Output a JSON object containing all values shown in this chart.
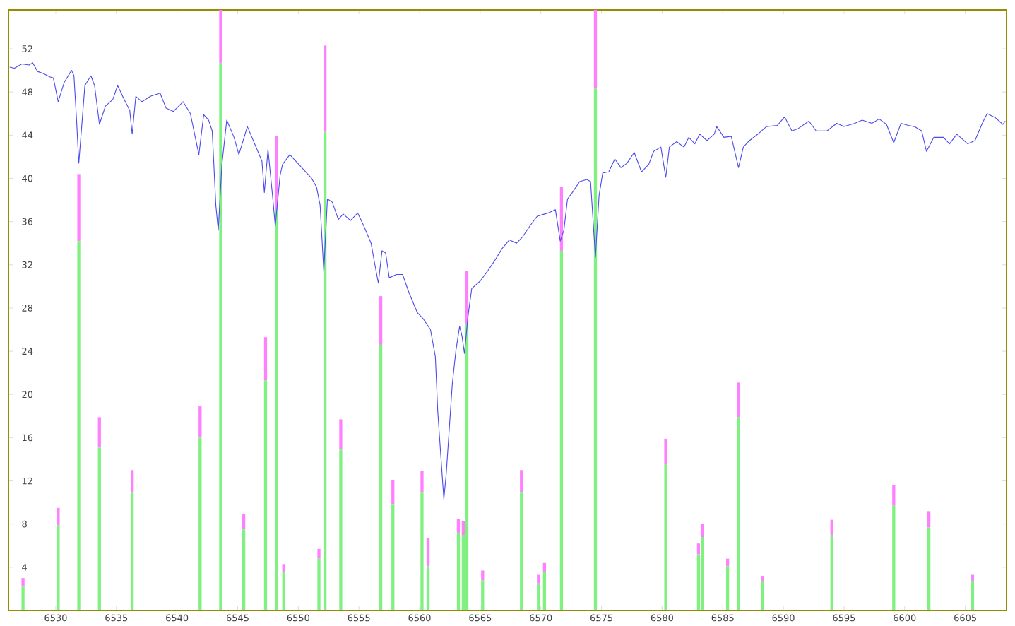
{
  "chart_data": {
    "type": "bar",
    "stacked": true,
    "xlim": [
      6526.1,
      6608.4
    ],
    "ylim": [
      0,
      55.6
    ],
    "xticks": [
      6530,
      6535,
      6540,
      6545,
      6550,
      6555,
      6560,
      6565,
      6570,
      6575,
      6580,
      6585,
      6590,
      6595,
      6600,
      6605
    ],
    "yticks": [
      4,
      8,
      12,
      16,
      20,
      24,
      28,
      32,
      36,
      40,
      44,
      48,
      52
    ],
    "series": [
      {
        "type": "bar",
        "color": "#80f080",
        "x": [
          6527.3,
          6530.2,
          6531.9,
          6533.6,
          6536.3,
          6541.9,
          6543.6,
          6545.5,
          6547.3,
          6548.2,
          6548.8,
          6551.7,
          6552.2,
          6553.5,
          6556.8,
          6557.8,
          6560.2,
          6560.7,
          6563.2,
          6563.6,
          6563.9,
          6565.2,
          6568.4,
          6569.8,
          6570.3,
          6571.7,
          6574.5,
          6580.3,
          6583.0,
          6583.3,
          6585.4,
          6586.3,
          6588.3,
          6594.0,
          6599.1,
          6602.0,
          6605.6
        ],
        "values": [
          2.2,
          7.9,
          34.2,
          15.1,
          10.9,
          16.0,
          50.7,
          7.5,
          21.3,
          37.1,
          3.6,
          4.8,
          44.3,
          14.9,
          24.6,
          9.8,
          10.9,
          4.1,
          7.2,
          7.0,
          26.5,
          2.8,
          10.9,
          2.5,
          3.6,
          33.3,
          48.3,
          13.5,
          5.2,
          6.8,
          4.1,
          17.9,
          2.7,
          7.0,
          9.7,
          7.7,
          2.7
        ]
      },
      {
        "type": "bar",
        "color": "#ff80ff",
        "x": [
          6527.3,
          6530.2,
          6531.9,
          6533.6,
          6536.3,
          6541.9,
          6543.6,
          6545.5,
          6547.3,
          6548.2,
          6548.8,
          6551.7,
          6552.2,
          6553.5,
          6556.8,
          6557.8,
          6560.2,
          6560.7,
          6563.2,
          6563.6,
          6563.9,
          6565.2,
          6568.4,
          6569.8,
          6570.3,
          6571.7,
          6574.5,
          6580.3,
          6583.0,
          6583.3,
          6585.4,
          6586.3,
          6588.3,
          6594.0,
          6599.1,
          6602.0,
          6605.6
        ],
        "values": [
          0.8,
          1.6,
          6.2,
          2.8,
          2.1,
          2.9,
          4.9,
          1.4,
          4.0,
          6.8,
          0.7,
          0.9,
          8.0,
          2.8,
          4.5,
          2.3,
          2.0,
          2.6,
          1.3,
          1.3,
          4.9,
          0.9,
          2.1,
          0.8,
          0.8,
          5.9,
          7.3,
          2.4,
          1.0,
          1.2,
          0.7,
          3.2,
          0.5,
          1.4,
          1.9,
          1.5,
          0.6
        ]
      },
      {
        "type": "line",
        "color": "#4a4af0",
        "x": [
          6526.2,
          6526.6,
          6527.2,
          6527.8,
          6528.1,
          6528.5,
          6529.0,
          6529.5,
          6529.8,
          6530.2,
          6530.7,
          6531.3,
          6531.5,
          6531.7,
          6531.9,
          6532.2,
          6532.4,
          6532.9,
          6533.2,
          6533.6,
          6534.1,
          6534.7,
          6535.1,
          6535.6,
          6536.1,
          6536.3,
          6536.6,
          6537.1,
          6537.8,
          6538.6,
          6539.1,
          6539.7,
          6540.5,
          6541.1,
          6541.8,
          6542.2,
          6542.6,
          6542.9,
          6543.2,
          6543.4,
          6543.7,
          6544.1,
          6544.7,
          6545.1,
          6545.8,
          6546.4,
          6547.0,
          6547.2,
          6547.5,
          6547.9,
          6548.1,
          6548.5,
          6548.7,
          6549.3,
          6550.2,
          6551.1,
          6551.5,
          6551.8,
          6552.1,
          6552.4,
          6552.8,
          6553.3,
          6553.7,
          6554.3,
          6554.9,
          6555.4,
          6556.0,
          6556.3,
          6556.6,
          6556.9,
          6557.2,
          6557.5,
          6558.1,
          6558.6,
          6559.1,
          6559.8,
          6560.3,
          6560.9,
          6561.3,
          6561.5,
          6562.0,
          6562.2,
          6562.7,
          6563.0,
          6563.3,
          6563.5,
          6563.7,
          6564.0,
          6564.3,
          6565.0,
          6565.6,
          6566.2,
          6566.8,
          6567.4,
          6568.0,
          6568.5,
          6569.1,
          6569.7,
          6570.6,
          6571.2,
          6571.6,
          6571.9,
          6572.2,
          6572.6,
          6573.2,
          6573.8,
          6574.1,
          6574.5,
          6574.8,
          6575.1,
          6575.6,
          6576.1,
          6576.6,
          6577.1,
          6577.7,
          6578.3,
          6578.9,
          6579.3,
          6579.9,
          6580.3,
          6580.6,
          6581.2,
          6581.8,
          6582.2,
          6582.7,
          6583.1,
          6583.7,
          6584.3,
          6584.5,
          6585.1,
          6585.7,
          6586.3,
          6586.7,
          6587.2,
          6587.9,
          6588.6,
          6589.5,
          6590.1,
          6590.7,
          6591.2,
          6592.1,
          6592.7,
          6593.6,
          6594.4,
          6595.0,
          6595.9,
          6596.5,
          6597.3,
          6597.9,
          6598.5,
          6599.1,
          6599.7,
          6600.3,
          6600.8,
          6601.4,
          6601.8,
          6602.4,
          6603.2,
          6603.7,
          6604.3,
          6605.2,
          6605.8,
          6606.4,
          6606.8,
          6607.5,
          6608.1,
          6608.3
        ],
        "values": [
          50.3,
          50.2,
          50.6,
          50.5,
          50.7,
          49.9,
          49.7,
          49.4,
          49.3,
          47.1,
          48.9,
          50.0,
          49.5,
          45.7,
          41.4,
          45.7,
          48.6,
          49.5,
          48.6,
          45.0,
          46.7,
          47.3,
          48.6,
          47.4,
          46.3,
          44.1,
          47.6,
          47.1,
          47.6,
          47.9,
          46.5,
          46.2,
          47.1,
          46.0,
          42.2,
          45.9,
          45.4,
          44.4,
          37.5,
          35.2,
          41.3,
          45.4,
          43.8,
          42.2,
          44.8,
          43.2,
          41.6,
          38.7,
          42.7,
          38.1,
          35.6,
          40.3,
          41.3,
          42.2,
          41.1,
          40.0,
          39.2,
          37.5,
          31.4,
          38.1,
          37.8,
          36.2,
          36.7,
          36.1,
          36.8,
          35.6,
          34.0,
          32.1,
          30.3,
          33.3,
          33.1,
          30.8,
          31.1,
          31.1,
          29.5,
          27.6,
          27.0,
          26.0,
          23.5,
          18.4,
          10.3,
          12.7,
          21.0,
          24.1,
          26.3,
          25.4,
          23.8,
          27.3,
          29.8,
          30.5,
          31.4,
          32.4,
          33.5,
          34.3,
          34.0,
          34.6,
          35.6,
          36.5,
          36.8,
          37.1,
          34.2,
          35.2,
          38.1,
          38.7,
          39.7,
          39.9,
          39.7,
          32.7,
          38.4,
          40.5,
          40.6,
          41.8,
          41.0,
          41.4,
          42.4,
          40.6,
          41.3,
          42.5,
          42.9,
          40.1,
          42.9,
          43.4,
          42.9,
          43.8,
          43.2,
          44.1,
          43.5,
          44.1,
          44.8,
          43.8,
          43.9,
          41.0,
          42.9,
          43.5,
          44.1,
          44.8,
          44.9,
          45.7,
          44.4,
          44.6,
          45.3,
          44.4,
          44.4,
          45.1,
          44.8,
          45.1,
          45.4,
          45.1,
          45.5,
          45.0,
          43.3,
          45.1,
          44.9,
          44.8,
          44.4,
          42.5,
          43.8,
          43.8,
          43.2,
          44.1,
          43.2,
          43.5,
          45.1,
          46.0,
          45.6,
          45.0,
          45.3
        ]
      }
    ]
  }
}
